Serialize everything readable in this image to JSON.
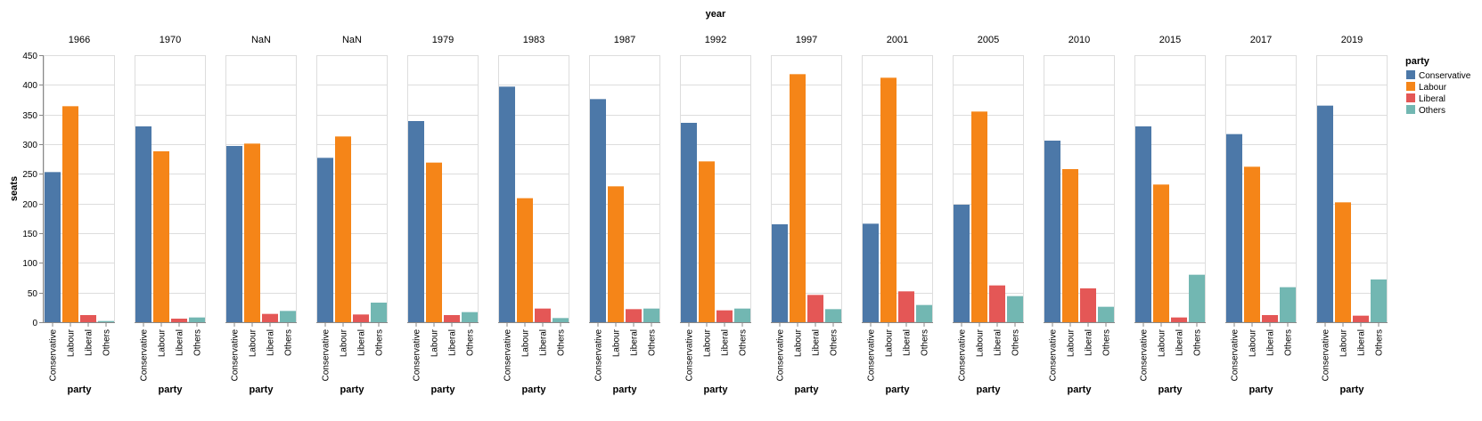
{
  "chart_data": {
    "type": "bar",
    "title": "",
    "facet_title": "year",
    "xlabel": "party",
    "ylabel": "seats",
    "ylim": [
      0,
      450
    ],
    "yticks": [
      0,
      50,
      100,
      150,
      200,
      250,
      300,
      350,
      400,
      450
    ],
    "grid": true,
    "legend": {
      "title": "party",
      "placement": "right"
    },
    "categories": [
      "Conservative",
      "Labour",
      "Liberal",
      "Others"
    ],
    "colors": {
      "Conservative": "#4c78a8",
      "Labour": "#f58518",
      "Liberal": "#e45756",
      "Others": "#72b7b2"
    },
    "facets": [
      {
        "year": "1966",
        "values": [
          253,
          364,
          12,
          2
        ]
      },
      {
        "year": "1970",
        "values": [
          330,
          288,
          6,
          8
        ]
      },
      {
        "year": "NaN",
        "values": [
          297,
          301,
          14,
          19
        ]
      },
      {
        "year": "NaN",
        "values": [
          277,
          313,
          13,
          33
        ]
      },
      {
        "year": "1979",
        "values": [
          339,
          269,
          12,
          17
        ]
      },
      {
        "year": "1983",
        "values": [
          397,
          209,
          23,
          7
        ]
      },
      {
        "year": "1987",
        "values": [
          376,
          229,
          22,
          23
        ]
      },
      {
        "year": "1992",
        "values": [
          336,
          271,
          20,
          23
        ]
      },
      {
        "year": "1997",
        "values": [
          165,
          418,
          46,
          22
        ]
      },
      {
        "year": "2001",
        "values": [
          166,
          412,
          52,
          29
        ]
      },
      {
        "year": "2005",
        "values": [
          198,
          355,
          62,
          44
        ]
      },
      {
        "year": "2010",
        "values": [
          306,
          258,
          57,
          26
        ]
      },
      {
        "year": "2015",
        "values": [
          330,
          232,
          8,
          80
        ]
      },
      {
        "year": "2017",
        "values": [
          317,
          262,
          12,
          59
        ]
      },
      {
        "year": "2019",
        "values": [
          365,
          202,
          11,
          72
        ]
      }
    ]
  }
}
